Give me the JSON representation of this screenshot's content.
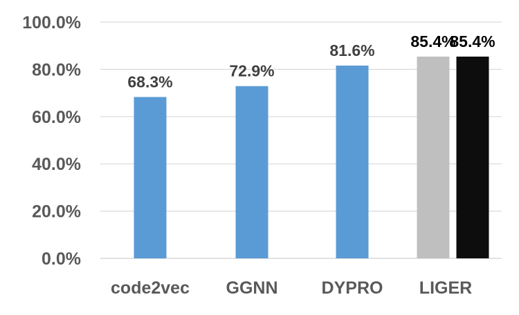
{
  "chart_data": {
    "type": "bar",
    "title": "",
    "xlabel": "",
    "ylabel": "",
    "ylim": [
      0,
      100
    ],
    "yticks": [
      0,
      20,
      40,
      60,
      80,
      100
    ],
    "ytick_labels": [
      "0.0%",
      "20.0%",
      "40.0%",
      "60.0%",
      "80.0%",
      "100.0%"
    ],
    "grid": true,
    "legend": "none",
    "categories": [
      "code2vec",
      "GGNN",
      "DYPRO",
      "LIGER"
    ],
    "bars": [
      {
        "category": "code2vec",
        "value": 68.3,
        "label": "68.3%",
        "color": "#5B9BD5",
        "label_color": "#404040"
      },
      {
        "category": "GGNN",
        "value": 72.9,
        "label": "72.9%",
        "color": "#5B9BD5",
        "label_color": "#404040"
      },
      {
        "category": "DYPRO",
        "value": 81.6,
        "label": "81.6%",
        "color": "#5B9BD5",
        "label_color": "#404040"
      },
      {
        "category": "LIGER",
        "value": 85.4,
        "label": "85.4%",
        "color": "#BFBFBF",
        "label_color": "#000000"
      },
      {
        "category": "LIGER",
        "value": 85.4,
        "label": "85.4%",
        "color": "#0D0D0D",
        "label_color": "#000000"
      }
    ]
  }
}
